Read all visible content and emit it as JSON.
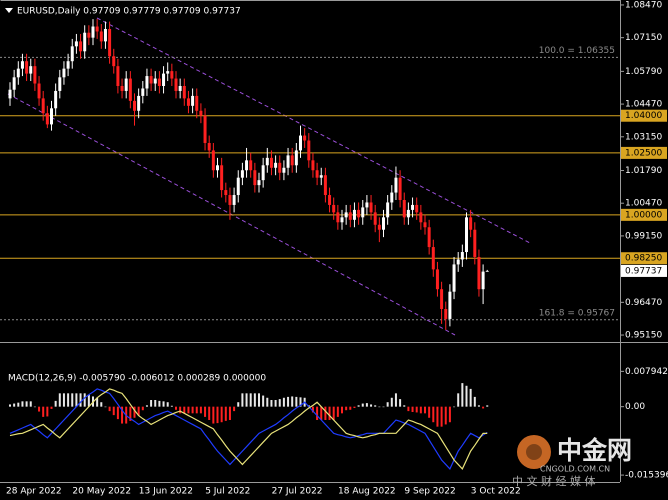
{
  "chart_data": [
    {
      "type": "candlestick",
      "title": "EURUSD,Daily  0.97709 0.97779 0.97709 0.97737",
      "categories": [
        "28 Apr 2022",
        null,
        null,
        null,
        null,
        null,
        null,
        null,
        null,
        null,
        null,
        null,
        null,
        null,
        null,
        null,
        "20 May 2022",
        null,
        null,
        null,
        null,
        null,
        null,
        null,
        null,
        null,
        null,
        null,
        null,
        null,
        null,
        null,
        "13 Jun 2022",
        null,
        null,
        null,
        null,
        null,
        null,
        null,
        null,
        null,
        null,
        null,
        null,
        null,
        null,
        null,
        "5 Jul 2022",
        null,
        null,
        null,
        null,
        null,
        null,
        null,
        null,
        null,
        null,
        null,
        null,
        null,
        null,
        null,
        "27 Jul 2022",
        null,
        null,
        null,
        null,
        null,
        null,
        null,
        null,
        null,
        null,
        null,
        null,
        null,
        null,
        null,
        "18 Aug 2022",
        null,
        null,
        null,
        null,
        null,
        null,
        null,
        null,
        null,
        null,
        null,
        null,
        null,
        null,
        null,
        "9 Sep 2022",
        null,
        null,
        null,
        null,
        null,
        null,
        null,
        null,
        null,
        null,
        null,
        null,
        null,
        null,
        null,
        "3 Oct 2022",
        null,
        null,
        null
      ],
      "open": [
        1.047,
        1.0505,
        1.0555,
        1.059,
        1.062,
        1.057,
        1.06,
        1.053,
        1.047,
        1.041,
        1.0365,
        1.043,
        1.05,
        1.0555,
        1.059,
        1.062,
        1.068,
        1.07,
        1.066,
        1.0735,
        1.0715,
        1.076,
        1.074,
        1.07,
        1.075,
        1.064,
        1.06,
        1.052,
        1.05,
        1.055,
        1.046,
        1.042,
        1.048,
        1.051,
        1.056,
        1.053,
        1.055,
        1.052,
        1.057,
        1.058,
        1.055,
        1.05,
        1.052,
        1.047,
        1.044,
        1.048,
        1.042,
        1.04,
        1.029,
        1.026,
        1.018,
        1.02,
        1.01,
        1.008,
        1.004,
        1.008,
        1.015,
        1.018,
        1.022,
        1.018,
        1.012,
        1.014,
        1.02,
        1.023,
        1.019,
        1.021,
        1.017,
        1.019,
        1.024,
        1.02,
        1.026,
        1.032,
        1.03,
        1.022,
        1.018,
        1.015,
        1.016,
        1.008,
        1.004,
        1.001,
        0.997,
        0.999,
        1.001,
        0.998,
        1.002,
        0.999,
        1.003,
        1.005,
        1.001,
        0.996,
        0.994,
        0.999,
        1.005,
        1.009,
        1.015,
        1.006,
        0.999,
        1.002,
        1.004,
        1.001,
        0.997,
        0.995,
        0.987,
        0.978,
        0.97,
        0.962,
        0.958,
        0.969,
        0.98,
        0.982,
        0.985,
        0.999,
        0.994,
        0.983,
        0.97,
        0.97709
      ],
      "high": [
        1.0535,
        1.0585,
        1.062,
        1.065,
        1.065,
        1.063,
        1.063,
        1.056,
        1.05,
        1.044,
        1.046,
        1.053,
        1.0585,
        1.062,
        1.065,
        1.071,
        1.073,
        1.073,
        1.0765,
        1.0765,
        1.079,
        1.079,
        1.077,
        1.078,
        1.078,
        1.067,
        1.063,
        1.055,
        1.058,
        1.058,
        1.049,
        1.051,
        1.054,
        1.059,
        1.059,
        1.058,
        1.058,
        1.06,
        1.0615,
        1.061,
        1.058,
        1.055,
        1.055,
        1.05,
        1.051,
        1.051,
        1.045,
        1.043,
        1.032,
        1.029,
        1.023,
        1.023,
        1.013,
        1.011,
        1.011,
        1.018,
        1.021,
        1.027,
        1.025,
        1.021,
        1.017,
        1.023,
        1.027,
        1.026,
        1.024,
        1.024,
        1.022,
        1.027,
        1.027,
        1.029,
        1.036,
        1.035,
        1.033,
        1.025,
        1.021,
        1.019,
        1.019,
        1.011,
        1.007,
        1.004,
        1.002,
        1.004,
        1.004,
        1.005,
        1.005,
        1.006,
        1.008,
        1.008,
        1.004,
        0.999,
        1.002,
        1.008,
        1.012,
        1.0195,
        1.018,
        1.009,
        1.005,
        1.007,
        1.007,
        1.004,
        1.0,
        0.998,
        0.99,
        0.981,
        0.973,
        0.965,
        0.972,
        0.983,
        0.985,
        0.988,
        1.001,
        1.002,
        0.997,
        0.986,
        0.98,
        0.97779
      ],
      "low": [
        1.044,
        1.0475,
        1.0525,
        1.056,
        1.054,
        1.054,
        1.05,
        1.044,
        1.038,
        1.035,
        1.034,
        1.04,
        1.047,
        1.0525,
        1.056,
        1.059,
        1.065,
        1.063,
        1.063,
        1.0685,
        1.0685,
        1.071,
        1.067,
        1.067,
        1.061,
        1.057,
        1.049,
        1.047,
        1.047,
        1.043,
        1.036,
        1.039,
        1.045,
        1.048,
        1.05,
        1.05,
        1.049,
        1.049,
        1.054,
        1.052,
        1.047,
        1.047,
        1.044,
        1.041,
        1.041,
        1.039,
        1.037,
        1.026,
        1.023,
        1.015,
        1.015,
        1.007,
        1.005,
        0.998,
        1.001,
        1.005,
        1.012,
        1.015,
        1.015,
        1.009,
        1.009,
        1.011,
        1.017,
        1.016,
        1.016,
        1.014,
        1.014,
        1.016,
        1.017,
        1.017,
        1.023,
        1.027,
        1.019,
        1.015,
        1.012,
        1.012,
        1.005,
        1.001,
        0.998,
        0.994,
        0.994,
        0.996,
        0.995,
        0.995,
        0.996,
        0.996,
        1.0,
        0.998,
        0.993,
        0.989,
        0.991,
        0.996,
        1.002,
        1.006,
        1.003,
        0.996,
        0.996,
        0.999,
        0.998,
        0.994,
        0.992,
        0.984,
        0.975,
        0.967,
        0.956,
        0.9536,
        0.955,
        0.966,
        0.977,
        0.979,
        0.982,
        0.991,
        0.98,
        0.967,
        0.964,
        0.97709
      ],
      "close": [
        1.0505,
        1.0555,
        1.059,
        1.062,
        1.057,
        1.06,
        1.053,
        1.047,
        1.041,
        1.0365,
        1.043,
        1.05,
        1.0555,
        1.059,
        1.062,
        1.068,
        1.07,
        1.066,
        1.0735,
        1.0715,
        1.076,
        1.074,
        1.07,
        1.075,
        1.064,
        1.06,
        1.052,
        1.05,
        1.055,
        1.046,
        1.042,
        1.048,
        1.051,
        1.056,
        1.053,
        1.055,
        1.052,
        1.057,
        1.058,
        1.055,
        1.05,
        1.052,
        1.047,
        1.044,
        1.048,
        1.042,
        1.04,
        1.029,
        1.026,
        1.018,
        1.02,
        1.01,
        1.008,
        1.004,
        1.008,
        1.015,
        1.018,
        1.022,
        1.018,
        1.012,
        1.014,
        1.02,
        1.023,
        1.019,
        1.021,
        1.017,
        1.019,
        1.024,
        1.02,
        1.026,
        1.032,
        1.03,
        1.022,
        1.018,
        1.015,
        1.016,
        1.008,
        1.004,
        1.001,
        0.997,
        0.999,
        1.001,
        0.998,
        1.002,
        0.999,
        1.003,
        1.005,
        1.001,
        0.996,
        0.994,
        0.999,
        1.005,
        1.009,
        1.015,
        1.006,
        0.999,
        1.002,
        1.004,
        1.001,
        0.997,
        0.995,
        0.987,
        0.978,
        0.97,
        0.962,
        0.958,
        0.969,
        0.98,
        0.982,
        0.985,
        0.999,
        0.994,
        0.983,
        0.97,
        0.9771,
        0.97737
      ],
      "up_color": "#ffffff",
      "down_color": "#ff2020",
      "ylim": [
        0.9495,
        1.0867
      ],
      "yticks": [
        {
          "value": 1.0847,
          "label": "1.08470"
        },
        {
          "value": 1.0715,
          "label": "1.07150"
        },
        {
          "value": 1.0579,
          "label": "1.05790"
        },
        {
          "value": 1.0447,
          "label": "1.04470"
        },
        {
          "value": 1.0315,
          "label": "1.03150"
        },
        {
          "value": 1.0179,
          "label": "1.01790"
        },
        {
          "value": 1.0047,
          "label": "1.00470"
        },
        {
          "value": 0.9915,
          "label": "0.99150"
        },
        {
          "value": 0.9647,
          "label": "0.96470"
        },
        {
          "value": 0.9515,
          "label": "0.95150"
        }
      ],
      "levels": [
        {
          "value": 1.04,
          "label": "1.04000"
        },
        {
          "value": 1.025,
          "label": "1.02500"
        },
        {
          "value": 1.0,
          "label": "1.00000"
        },
        {
          "value": 0.9825,
          "label": "0.98250"
        }
      ],
      "level_color": "#d9a521",
      "fibo": [
        {
          "value": 1.06355,
          "label": "100.0 = 1.06355"
        },
        {
          "value": 0.95767,
          "label": "161.8 = 0.95767"
        }
      ],
      "fibo_color": "#8a8a8a",
      "last_price": 0.97737
    },
    {
      "type": "macd",
      "title": "MACD(12,26,9) -0.005790 -0.006012 0.000289 0.000000",
      "histogram": {
        "up_color": "#e8e8e8",
        "down_color": "#ff2020",
        "values": [
          0.0005,
          0.0007,
          0.0009,
          0.0012,
          0.0012,
          0.0012,
          0.0,
          -0.0011,
          -0.0023,
          -0.0022,
          -0.0005,
          0.0013,
          0.003,
          0.003,
          0.003,
          0.003,
          0.003,
          0.003,
          0.003,
          0.0027,
          0.0023,
          0.002,
          0.001,
          0.0,
          -0.001,
          -0.0019,
          -0.0028,
          -0.0038,
          -0.0038,
          -0.0032,
          -0.0025,
          -0.002,
          -0.0008,
          0.0003,
          0.0015,
          0.0015,
          0.0013,
          0.0012,
          0.001,
          0.0002,
          -0.0007,
          -0.0015,
          -0.0015,
          -0.0015,
          -0.0015,
          -0.0015,
          -0.0015,
          -0.0023,
          -0.003,
          -0.0038,
          -0.0037,
          -0.0035,
          -0.0032,
          -0.003,
          -0.001,
          0.001,
          0.003,
          0.003,
          0.003,
          0.003,
          0.003,
          0.0025,
          0.002,
          0.0015,
          0.0015,
          0.0017,
          0.002,
          0.0022,
          0.0023,
          0.0022,
          0.0021,
          0.002,
          0.0003,
          -0.0013,
          -0.003,
          -0.003,
          -0.003,
          -0.003,
          -0.003,
          -0.0023,
          -0.0015,
          -0.0008,
          -0.0007,
          -0.0003,
          0.0003,
          0.0007,
          0.0008,
          0.0005,
          0.0003,
          0.0,
          0.0,
          0.001,
          0.002,
          0.003,
          0.0017,
          0.0003,
          -0.001,
          -0.0012,
          -0.0013,
          -0.0015,
          -0.0015,
          -0.0025,
          -0.0035,
          -0.0045,
          -0.0045,
          -0.004,
          -0.0035,
          0.0,
          0.003,
          0.0053,
          0.0047,
          0.004,
          0.0022,
          0.0003,
          -0.0004,
          0.000289
        ]
      },
      "series": [
        {
          "color": "#1f3cff",
          "values": [
            -0.006,
            -0.0056,
            -0.0052,
            -0.0048,
            -0.0044,
            -0.004,
            -0.0048,
            -0.0055,
            -0.0063,
            -0.007,
            -0.006,
            -0.005,
            -0.004,
            -0.003,
            -0.002,
            -0.001,
            0.0,
            0.001,
            0.002,
            0.0027,
            0.0033,
            0.004,
            0.0037,
            0.0033,
            0.003,
            0.0018,
            0.0005,
            -0.0008,
            -0.002,
            -0.0027,
            -0.0033,
            -0.004,
            -0.0035,
            -0.003,
            -0.0025,
            -0.002,
            -0.0017,
            -0.0013,
            -0.001,
            -0.0015,
            -0.002,
            -0.0025,
            -0.003,
            -0.0035,
            -0.004,
            -0.0045,
            -0.005,
            -0.0063,
            -0.0075,
            -0.0088,
            -0.01,
            -0.011,
            -0.012,
            -0.013,
            -0.012,
            -0.011,
            -0.01,
            -0.009,
            -0.008,
            -0.007,
            -0.006,
            -0.0055,
            -0.005,
            -0.0045,
            -0.004,
            -0.0033,
            -0.0025,
            -0.0018,
            -0.001,
            -0.0003,
            0.0003,
            0.001,
            0.0,
            -0.001,
            -0.002,
            -0.003,
            -0.004,
            -0.005,
            -0.006,
            -0.0063,
            -0.0065,
            -0.0068,
            -0.007,
            -0.0068,
            -0.0065,
            -0.0063,
            -0.006,
            -0.006,
            -0.006,
            -0.006,
            -0.006,
            -0.005,
            -0.004,
            -0.003,
            -0.0033,
            -0.0037,
            -0.004,
            -0.0045,
            -0.005,
            -0.0055,
            -0.006,
            -0.0075,
            -0.009,
            -0.0105,
            -0.012,
            -0.013,
            -0.014,
            -0.012,
            -0.01,
            -0.0087,
            -0.0073,
            -0.006,
            -0.0065,
            -0.007,
            -0.0064,
            -0.00579
          ]
        },
        {
          "color": "#e8e27a",
          "values": [
            -0.0065,
            -0.0063,
            -0.0061,
            -0.006,
            -0.0056,
            -0.0052,
            -0.0048,
            -0.0044,
            -0.004,
            -0.0048,
            -0.0055,
            -0.0063,
            -0.007,
            -0.006,
            -0.005,
            -0.004,
            -0.003,
            -0.002,
            -0.001,
            0.0,
            0.001,
            0.002,
            0.0027,
            0.0033,
            0.004,
            0.0037,
            0.0033,
            0.003,
            0.0018,
            0.0005,
            -0.0008,
            -0.002,
            -0.0027,
            -0.0033,
            -0.004,
            -0.0035,
            -0.003,
            -0.0025,
            -0.002,
            -0.0017,
            -0.0013,
            -0.001,
            -0.0015,
            -0.002,
            -0.0025,
            -0.003,
            -0.0035,
            -0.004,
            -0.0045,
            -0.005,
            -0.0063,
            -0.0075,
            -0.0088,
            -0.01,
            -0.011,
            -0.012,
            -0.013,
            -0.012,
            -0.011,
            -0.01,
            -0.009,
            -0.008,
            -0.007,
            -0.006,
            -0.0055,
            -0.005,
            -0.0045,
            -0.004,
            -0.0033,
            -0.0025,
            -0.0018,
            -0.001,
            -0.0003,
            0.0003,
            0.001,
            0.0,
            -0.001,
            -0.002,
            -0.003,
            -0.004,
            -0.005,
            -0.006,
            -0.0063,
            -0.0065,
            -0.0068,
            -0.007,
            -0.0068,
            -0.0065,
            -0.0063,
            -0.006,
            -0.006,
            -0.006,
            -0.006,
            -0.006,
            -0.005,
            -0.004,
            -0.003,
            -0.0033,
            -0.0037,
            -0.004,
            -0.0045,
            -0.005,
            -0.0055,
            -0.006,
            -0.0075,
            -0.009,
            -0.0105,
            -0.012,
            -0.013,
            -0.014,
            -0.012,
            -0.01,
            -0.0087,
            -0.0073,
            -0.006,
            -0.006012
          ]
        }
      ],
      "ylim": [
        -0.0165,
        0.0087
      ],
      "yticks": [
        0.007942,
        {
          "value": 0,
          "label": "0.00"
        },
        -0.015396
      ]
    }
  ],
  "watermark": {
    "logo": "中金网",
    "site": "CNGOLD.COM.CN",
    "tagline": "中 文 财 经 媒 体"
  }
}
